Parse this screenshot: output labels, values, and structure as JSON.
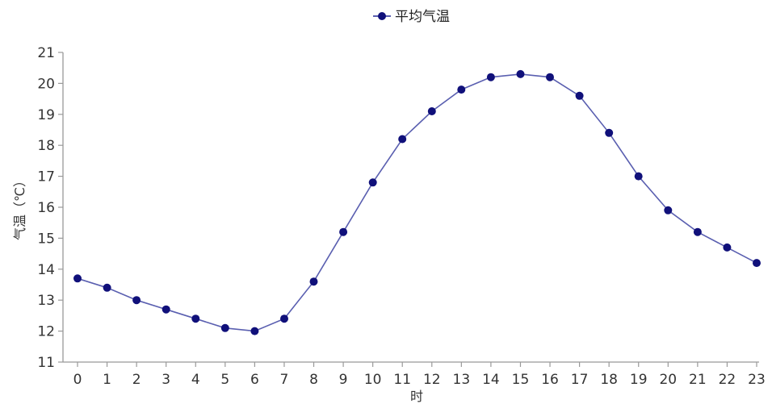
{
  "chart_data": {
    "type": "line",
    "title": "",
    "xlabel": "时",
    "ylabel": "气温（℃）",
    "x": [
      0,
      1,
      2,
      3,
      4,
      5,
      6,
      7,
      8,
      9,
      10,
      11,
      12,
      13,
      14,
      15,
      16,
      17,
      18,
      19,
      20,
      21,
      22,
      23
    ],
    "xticks": [
      "0",
      "1",
      "2",
      "3",
      "4",
      "5",
      "6",
      "7",
      "8",
      "9",
      "10",
      "11",
      "12",
      "13",
      "14",
      "15",
      "16",
      "17",
      "18",
      "19",
      "20",
      "21",
      "22",
      "23"
    ],
    "yticks": [
      "11",
      "12",
      "13",
      "14",
      "15",
      "16",
      "17",
      "18",
      "19",
      "20",
      "21"
    ],
    "ylim": [
      11,
      21
    ],
    "grid": false,
    "legend_position": "top-center",
    "series": [
      {
        "name": "平均气温",
        "values": [
          13.7,
          13.4,
          13.0,
          12.7,
          12.4,
          12.1,
          12.0,
          12.4,
          13.6,
          15.2,
          16.8,
          18.2,
          19.1,
          19.8,
          20.2,
          20.3,
          20.2,
          19.6,
          18.4,
          17.0,
          15.9,
          15.2,
          14.7,
          14.2
        ],
        "line_color": "#5a5fb0",
        "marker_color": "#10107a"
      }
    ],
    "axis_color": "#999999"
  }
}
